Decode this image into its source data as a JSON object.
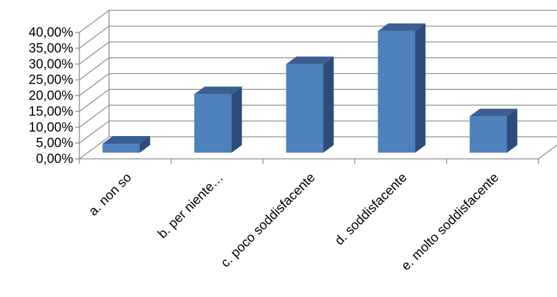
{
  "chart_data": {
    "type": "bar",
    "title": "",
    "xlabel": "",
    "ylabel": "",
    "categories": [
      "a. non so",
      "b.  per niente…",
      "c. poco soddisfacente",
      "d.  soddisfacente",
      "e. molto soddisfacente"
    ],
    "values": [
      3.5,
      18.5,
      28.0,
      38.5,
      11.5
    ],
    "ylim": [
      0,
      40
    ],
    "yticks": [
      "0,00%",
      "5,00%",
      "10,00%",
      "15,00%",
      "20,00%",
      "25,00%",
      "30,00%",
      "35,00%",
      "40,00%"
    ],
    "grid": true,
    "legend": "none",
    "colors": {
      "bar_front": "#4f81bd",
      "bar_side": "#2c4d7a",
      "bar_top": "#3a5f91",
      "grid": "#8c8c8c"
    }
  }
}
